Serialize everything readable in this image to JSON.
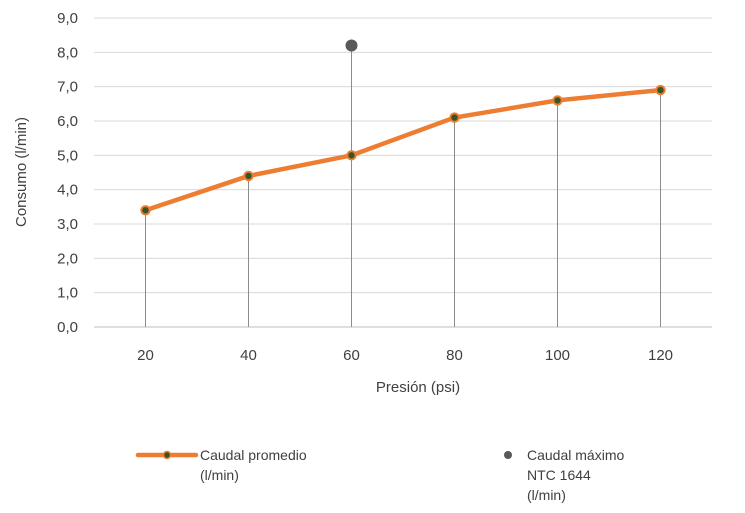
{
  "chart_data": {
    "type": "line",
    "xlabel": "Presión (psi)",
    "ylabel": "Consumo (l/min)",
    "x": [
      20,
      40,
      60,
      80,
      100,
      120
    ],
    "x_tick_labels": [
      "20",
      "40",
      "60",
      "80",
      "100",
      "120"
    ],
    "y_tick_labels": [
      "0,0",
      "1,0",
      "2,0",
      "3,0",
      "4,0",
      "5,0",
      "6,0",
      "7,0",
      "8,0",
      "9,0"
    ],
    "ylim": [
      0,
      9
    ],
    "grid": "horizontal",
    "drop_lines": true,
    "legend_position": "bottom",
    "series": [
      {
        "name": "Caudal promedio (l/min)",
        "legend_lines": [
          "Caudal promedio",
          "(l/min)"
        ],
        "kind": "line-with-markers",
        "color": "#ed7d31",
        "marker_color": "#375623",
        "x": [
          20,
          40,
          60,
          80,
          100,
          120
        ],
        "values": [
          3.4,
          4.4,
          5.0,
          6.1,
          6.6,
          6.9
        ]
      },
      {
        "name": "Caudal máximo NTC 1644 (l/min)",
        "legend_lines": [
          "Caudal máximo",
          "NTC 1644",
          "(l/min)"
        ],
        "kind": "point",
        "color": "#595959",
        "x": [
          60
        ],
        "values": [
          8.2
        ]
      }
    ]
  }
}
